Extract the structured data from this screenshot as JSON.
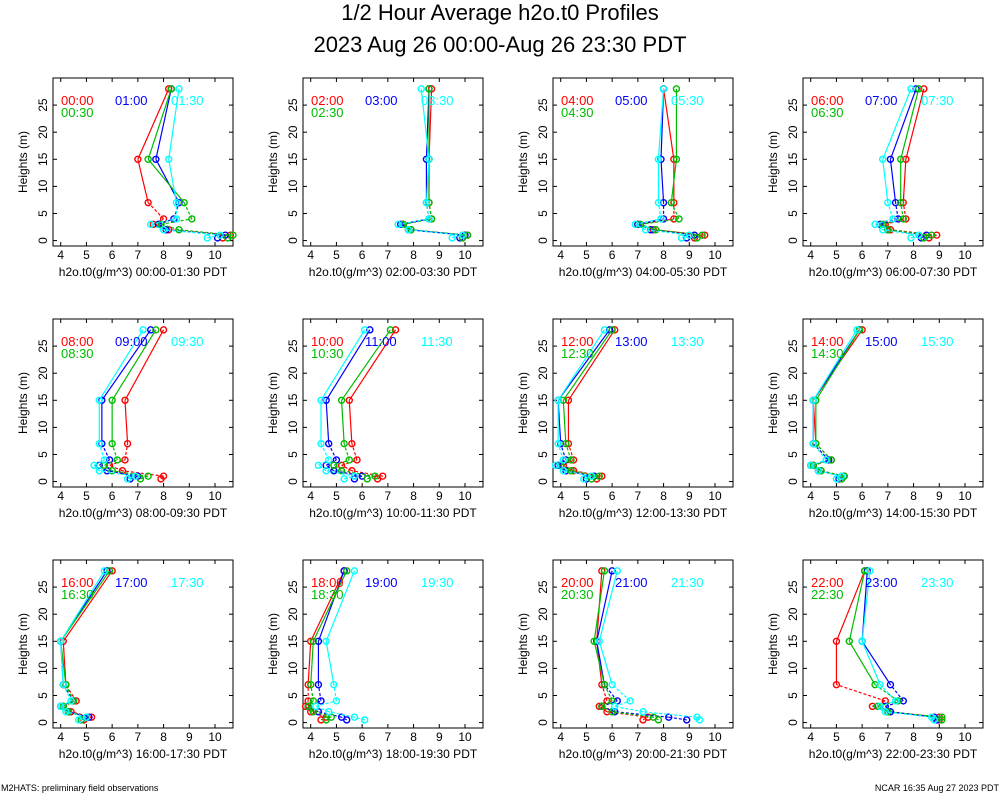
{
  "title": "1/2 Hour Average h2o.t0 Profiles",
  "subtitle": "2023 Aug 26 00:00-Aug 26 23:30 PDT",
  "footer_left": "M2HATS: preliminary field observations",
  "footer_right": "NCAR 16:35 Aug 27 2023 PDT",
  "colors": {
    "first": "#ff0000",
    "second": "#0000ff",
    "third": "#00bb00",
    "fourth": "#00ffff"
  },
  "heights": [
    0.5,
    1,
    2,
    3,
    4,
    7,
    15,
    28
  ],
  "chart_data": [
    {
      "type": "line",
      "ylabel": "Heights (m)",
      "xlabel": "h2o.t0(g/m^3) 00:00-01:30 PDT",
      "xlim": [
        3.7,
        10.7
      ],
      "ylim": [
        -1,
        30
      ],
      "xticks": [
        4,
        5,
        6,
        7,
        8,
        9,
        10
      ],
      "yticks": [
        0,
        5,
        10,
        15,
        20,
        25
      ],
      "series": [
        {
          "name": "00:00",
          "values": [
            10.3,
            10.6,
            8.2,
            7.6,
            8.0,
            7.4,
            7.0,
            8.2
          ]
        },
        {
          "name": "01:00",
          "values": [
            10.1,
            10.4,
            8.1,
            7.8,
            8.4,
            8.6,
            7.7,
            8.3
          ]
        },
        {
          "name": "00:30",
          "values": [
            10.5,
            10.7,
            8.6,
            7.9,
            9.1,
            8.8,
            7.4,
            8.3
          ]
        },
        {
          "name": "01:30",
          "values": [
            9.7,
            10.2,
            8.0,
            7.5,
            8.5,
            8.5,
            8.2,
            8.6
          ]
        }
      ]
    },
    {
      "type": "line",
      "ylabel": "Heights (m)",
      "xlabel": "h2o.t0(g/m^3) 02:00-03:30 PDT",
      "xlim": [
        3.7,
        10.7
      ],
      "ylim": [
        -1,
        30
      ],
      "xticks": [
        4,
        5,
        6,
        7,
        8,
        9,
        10
      ],
      "yticks": [
        0,
        5,
        10,
        15,
        20,
        25
      ],
      "series": [
        {
          "name": "02:00",
          "values": [
            9.9,
            10.1,
            7.9,
            7.6,
            8.7,
            8.6,
            8.6,
            8.7
          ]
        },
        {
          "name": "03:00",
          "values": [
            9.8,
            10.0,
            7.8,
            7.5,
            8.6,
            8.5,
            8.5,
            8.6
          ]
        },
        {
          "name": "02:30",
          "values": [
            9.9,
            10.1,
            7.9,
            7.6,
            8.7,
            8.6,
            8.6,
            8.6
          ]
        },
        {
          "name": "03:30",
          "values": [
            9.5,
            9.9,
            7.8,
            7.4,
            8.6,
            8.5,
            8.6,
            8.3
          ]
        }
      ]
    },
    {
      "type": "line",
      "ylabel": "Heights (m)",
      "xlabel": "h2o.t0(g/m^3) 04:00-05:30 PDT",
      "xlim": [
        3.7,
        10.7
      ],
      "ylim": [
        -1,
        30
      ],
      "xticks": [
        4,
        5,
        6,
        7,
        8,
        9,
        10
      ],
      "yticks": [
        0,
        5,
        10,
        15,
        20,
        25
      ],
      "series": [
        {
          "name": "04:00",
          "values": [
            9.2,
            9.6,
            7.6,
            7.0,
            8.4,
            8.4,
            8.4,
            8.0
          ]
        },
        {
          "name": "05:00",
          "values": [
            8.9,
            9.2,
            7.5,
            7.0,
            8.0,
            8.0,
            7.9,
            8.0
          ]
        },
        {
          "name": "04:30",
          "values": [
            9.3,
            9.5,
            7.7,
            7.1,
            8.6,
            8.3,
            8.5,
            8.5
          ]
        },
        {
          "name": "05:30",
          "values": [
            8.7,
            9.0,
            7.3,
            6.9,
            7.9,
            7.8,
            7.8,
            8.0
          ]
        }
      ]
    },
    {
      "type": "line",
      "ylabel": "Heights (m)",
      "xlabel": "h2o.t0(g/m^3) 06:00-07:30 PDT",
      "xlim": [
        3.7,
        10.7
      ],
      "ylim": [
        -1,
        30
      ],
      "xticks": [
        4,
        5,
        6,
        7,
        8,
        9,
        10
      ],
      "yticks": [
        0,
        5,
        10,
        15,
        20,
        25
      ],
      "series": [
        {
          "name": "06:00",
          "values": [
            8.6,
            8.9,
            7.1,
            6.9,
            7.7,
            7.6,
            7.7,
            8.4
          ]
        },
        {
          "name": "07:00",
          "values": [
            8.3,
            8.5,
            7.0,
            6.7,
            7.4,
            7.3,
            7.1,
            8.1
          ]
        },
        {
          "name": "06:30",
          "values": [
            8.4,
            8.7,
            7.0,
            6.8,
            7.6,
            7.5,
            7.5,
            8.2
          ]
        },
        {
          "name": "07:30",
          "values": [
            7.9,
            8.2,
            6.8,
            6.5,
            7.2,
            7.0,
            6.8,
            7.9
          ]
        }
      ]
    },
    {
      "type": "line",
      "ylabel": "Heights (m)",
      "xlabel": "h2o.t0(g/m^3) 08:00-09:30 PDT",
      "xlim": [
        3.7,
        10.7
      ],
      "ylim": [
        -1,
        30
      ],
      "xticks": [
        4,
        5,
        6,
        7,
        8,
        9,
        10
      ],
      "yticks": [
        0,
        5,
        10,
        15,
        20,
        25
      ],
      "series": [
        {
          "name": "08:00",
          "values": [
            7.9,
            8.0,
            6.4,
            5.9,
            6.5,
            6.6,
            6.5,
            8.0
          ]
        },
        {
          "name": "09:00",
          "values": [
            6.7,
            7.0,
            5.8,
            5.5,
            5.9,
            5.6,
            5.6,
            7.5
          ]
        },
        {
          "name": "08:30",
          "values": [
            7.1,
            7.4,
            6.0,
            5.7,
            6.2,
            6.0,
            6.0,
            7.7
          ]
        },
        {
          "name": "09:30",
          "values": [
            6.6,
            6.9,
            5.5,
            5.3,
            5.7,
            5.5,
            5.5,
            7.2
          ]
        }
      ]
    },
    {
      "type": "line",
      "ylabel": "Heights (m)",
      "xlabel": "h2o.t0(g/m^3) 10:00-11:30 PDT",
      "xlim": [
        3.7,
        10.7
      ],
      "ylim": [
        -1,
        30
      ],
      "xticks": [
        4,
        5,
        6,
        7,
        8,
        9,
        10
      ],
      "yticks": [
        0,
        5,
        10,
        15,
        20,
        25
      ],
      "series": [
        {
          "name": "10:00",
          "values": [
            6.6,
            6.8,
            5.6,
            5.2,
            5.8,
            5.6,
            5.5,
            7.3
          ]
        },
        {
          "name": "11:00",
          "values": [
            5.7,
            6.0,
            4.9,
            4.6,
            5.0,
            4.7,
            4.6,
            6.3
          ]
        },
        {
          "name": "10:30",
          "values": [
            6.2,
            6.5,
            5.2,
            4.9,
            5.5,
            5.3,
            5.2,
            7.1
          ]
        },
        {
          "name": "11:30",
          "values": [
            5.3,
            5.7,
            4.6,
            4.3,
            4.7,
            4.4,
            4.4,
            6.1
          ]
        }
      ]
    },
    {
      "type": "line",
      "ylabel": "Heights (m)",
      "xlabel": "h2o.t0(g/m^3) 12:00-13:30 PDT",
      "xlim": [
        3.7,
        10.7
      ],
      "ylim": [
        -1,
        30
      ],
      "xticks": [
        4,
        5,
        6,
        7,
        8,
        9,
        10
      ],
      "yticks": [
        0,
        5,
        10,
        15,
        20,
        25
      ],
      "series": [
        {
          "name": "12:00",
          "values": [
            5.4,
            5.6,
            4.5,
            4.1,
            4.5,
            4.3,
            4.3,
            6.1
          ]
        },
        {
          "name": "13:00",
          "values": [
            5.0,
            5.3,
            4.2,
            3.9,
            4.2,
            4.0,
            3.9,
            5.9
          ]
        },
        {
          "name": "12:30",
          "values": [
            5.2,
            5.5,
            4.4,
            4.0,
            4.4,
            4.2,
            4.1,
            6.0
          ]
        },
        {
          "name": "13:30",
          "values": [
            4.9,
            5.2,
            4.1,
            3.8,
            4.1,
            3.9,
            3.9,
            5.7
          ]
        }
      ]
    },
    {
      "type": "line",
      "ylabel": "Heights (m)",
      "xlabel": "h2o.t0(g/m^3) 14:00-15:30 PDT",
      "xlim": [
        3.7,
        10.7
      ],
      "ylim": [
        -1,
        30
      ],
      "xticks": [
        4,
        5,
        6,
        7,
        8,
        9,
        10
      ],
      "yticks": [
        0,
        5,
        10,
        15,
        20,
        25
      ],
      "series": [
        {
          "name": "14:00",
          "values": [
            5.2,
            5.3,
            4.4,
            4.1,
            4.8,
            4.2,
            4.1,
            6.0
          ]
        },
        {
          "name": "15:00",
          "values": [
            5.1,
            5.3,
            4.3,
            4.0,
            4.7,
            4.1,
            4.1,
            5.9
          ]
        },
        {
          "name": "14:30",
          "values": [
            5.2,
            5.3,
            4.4,
            4.1,
            4.8,
            4.2,
            4.2,
            5.9
          ]
        },
        {
          "name": "15:30",
          "values": [
            5.0,
            5.2,
            4.3,
            4.0,
            4.6,
            4.1,
            4.1,
            5.8
          ]
        }
      ]
    },
    {
      "type": "line",
      "ylabel": "Heights (m)",
      "xlabel": "h2o.t0(g/m^3) 16:00-17:30 PDT",
      "xlim": [
        3.7,
        10.7
      ],
      "ylim": [
        -1,
        30
      ],
      "xticks": [
        4,
        5,
        6,
        7,
        8,
        9,
        10
      ],
      "yticks": [
        0,
        5,
        10,
        15,
        20,
        25
      ],
      "series": [
        {
          "name": "16:00",
          "values": [
            4.9,
            5.2,
            4.4,
            4.1,
            4.6,
            4.2,
            4.1,
            6.0
          ]
        },
        {
          "name": "17:00",
          "values": [
            4.8,
            5.1,
            4.3,
            4.0,
            4.5,
            4.1,
            4.0,
            5.8
          ]
        },
        {
          "name": "16:30",
          "values": [
            4.8,
            5.0,
            4.3,
            4.1,
            4.5,
            4.2,
            4.0,
            5.9
          ]
        },
        {
          "name": "17:30",
          "values": [
            4.7,
            5.0,
            4.2,
            4.0,
            4.4,
            4.1,
            4.0,
            5.7
          ]
        }
      ]
    },
    {
      "type": "line",
      "ylabel": "Heights (m)",
      "xlabel": "h2o.t0(g/m^3) 18:00-19:30 PDT",
      "xlim": [
        3.7,
        10.7
      ],
      "ylim": [
        -1,
        30
      ],
      "xticks": [
        4,
        5,
        6,
        7,
        8,
        9,
        10
      ],
      "yticks": [
        0,
        5,
        10,
        15,
        20,
        25
      ],
      "series": [
        {
          "name": "18:00",
          "values": [
            4.4,
            4.6,
            4.0,
            3.8,
            3.9,
            3.9,
            4.0,
            5.3
          ]
        },
        {
          "name": "19:00",
          "values": [
            5.4,
            5.2,
            4.3,
            3.9,
            4.4,
            4.3,
            4.3,
            5.3
          ]
        },
        {
          "name": "18:30",
          "values": [
            4.6,
            4.8,
            4.1,
            3.9,
            4.1,
            4.0,
            4.1,
            5.4
          ]
        },
        {
          "name": "19:30",
          "values": [
            6.1,
            5.7,
            4.7,
            4.2,
            5.0,
            4.9,
            4.6,
            5.7
          ]
        }
      ]
    },
    {
      "type": "line",
      "ylabel": "Heights (m)",
      "xlabel": "h2o.t0(g/m^3) 20:00-21:30 PDT",
      "xlim": [
        3.7,
        10.7
      ],
      "ylim": [
        -1,
        30
      ],
      "xticks": [
        4,
        5,
        6,
        7,
        8,
        9,
        10
      ],
      "yticks": [
        0,
        5,
        10,
        15,
        20,
        25
      ],
      "series": [
        {
          "name": "20:00",
          "values": [
            7.2,
            7.4,
            5.8,
            5.5,
            5.8,
            5.6,
            5.4,
            5.6
          ]
        },
        {
          "name": "21:00",
          "values": [
            8.9,
            8.2,
            6.1,
            5.6,
            6.2,
            5.7,
            5.4,
            6.0
          ]
        },
        {
          "name": "20:30",
          "values": [
            7.8,
            7.6,
            6.0,
            5.6,
            6.0,
            5.7,
            5.3,
            5.7
          ]
        },
        {
          "name": "21:30",
          "values": [
            9.4,
            9.3,
            7.2,
            6.1,
            6.7,
            6.0,
            5.5,
            6.2
          ]
        }
      ]
    },
    {
      "type": "line",
      "ylabel": "Heights (m)",
      "xlabel": "h2o.t0(g/m^3) 22:00-23:30 PDT",
      "xlim": [
        3.7,
        10.7
      ],
      "ylim": [
        -1,
        30
      ],
      "xticks": [
        4,
        5,
        6,
        7,
        8,
        9,
        10
      ],
      "yticks": [
        0,
        5,
        10,
        15,
        20,
        25
      ],
      "series": [
        {
          "name": "22:00",
          "values": [
            9.0,
            9.0,
            7.0,
            6.4,
            6.9,
            5.0,
            5.0,
            6.1
          ]
        },
        {
          "name": "23:00",
          "values": [
            8.9,
            8.8,
            7.1,
            6.9,
            7.6,
            7.1,
            6.0,
            6.2
          ]
        },
        {
          "name": "22:30",
          "values": [
            9.1,
            9.1,
            7.0,
            6.6,
            7.4,
            6.5,
            5.5,
            6.1
          ]
        },
        {
          "name": "23:30",
          "values": [
            8.8,
            8.7,
            6.9,
            6.7,
            7.3,
            6.7,
            6.0,
            6.3
          ]
        }
      ]
    }
  ]
}
